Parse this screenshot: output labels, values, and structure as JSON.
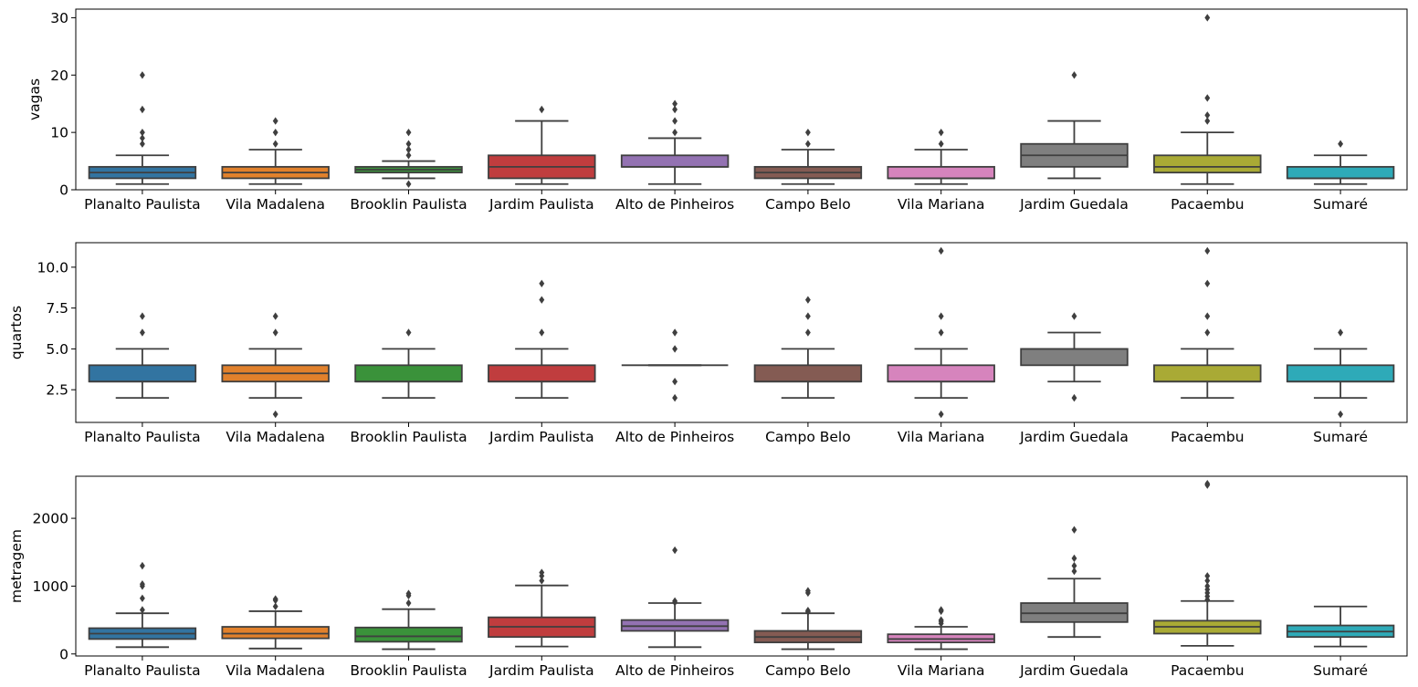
{
  "chart_data": [
    {
      "type": "boxplot",
      "ylabel": "vagas",
      "ylim": [
        0,
        31.5
      ],
      "yticks": [
        0,
        10,
        20,
        30
      ],
      "categories": [
        "Planalto Paulista",
        "Vila Madalena",
        "Brooklin Paulista",
        "Jardim Paulista",
        "Alto de Pinheiros",
        "Campo Belo",
        "Vila Mariana",
        "Jardim Guedala",
        "Pacaembu",
        "Sumaré"
      ],
      "boxes": [
        {
          "whislo": 1,
          "q1": 2,
          "med": 3,
          "q3": 4,
          "whishi": 6,
          "fliers": [
            8,
            9,
            10,
            14,
            20
          ]
        },
        {
          "whislo": 1,
          "q1": 2,
          "med": 3,
          "q3": 4,
          "whishi": 7,
          "fliers": [
            8,
            10,
            12
          ]
        },
        {
          "whislo": 2,
          "q1": 3,
          "med": 3.5,
          "q3": 4,
          "whishi": 5,
          "fliers": [
            1,
            6,
            7,
            8,
            10
          ]
        },
        {
          "whislo": 1,
          "q1": 2,
          "med": 4,
          "q3": 6,
          "whishi": 12,
          "fliers": [
            14
          ]
        },
        {
          "whislo": 1,
          "q1": 4,
          "med": 4,
          "q3": 6,
          "whishi": 9,
          "fliers": [
            10,
            12,
            14,
            15
          ]
        },
        {
          "whislo": 1,
          "q1": 2,
          "med": 3,
          "q3": 4,
          "whishi": 7,
          "fliers": [
            8,
            10
          ]
        },
        {
          "whislo": 1,
          "q1": 2,
          "med": 2,
          "q3": 4,
          "whishi": 7,
          "fliers": [
            8,
            10
          ]
        },
        {
          "whislo": 2,
          "q1": 4,
          "med": 6,
          "q3": 8,
          "whishi": 12,
          "fliers": [
            20
          ]
        },
        {
          "whislo": 1,
          "q1": 3,
          "med": 4,
          "q3": 6,
          "whishi": 10,
          "fliers": [
            12,
            13,
            16,
            30
          ]
        },
        {
          "whislo": 1,
          "q1": 2,
          "med": 2,
          "q3": 4,
          "whishi": 6,
          "fliers": [
            8
          ]
        }
      ]
    },
    {
      "type": "boxplot",
      "ylabel": "quartos",
      "ylim": [
        0.5,
        11.5
      ],
      "yticks": [
        2.5,
        5.0,
        7.5,
        10.0
      ],
      "categories": [
        "Planalto Paulista",
        "Vila Madalena",
        "Brooklin Paulista",
        "Jardim Paulista",
        "Alto de Pinheiros",
        "Campo Belo",
        "Vila Mariana",
        "Jardim Guedala",
        "Pacaembu",
        "Sumaré"
      ],
      "boxes": [
        {
          "whislo": 2,
          "q1": 3,
          "med": 3,
          "q3": 4,
          "whishi": 5,
          "fliers": [
            6,
            7
          ]
        },
        {
          "whislo": 2,
          "q1": 3,
          "med": 3.5,
          "q3": 4,
          "whishi": 5,
          "fliers": [
            1,
            6,
            7
          ]
        },
        {
          "whislo": 2,
          "q1": 3,
          "med": 3,
          "q3": 4,
          "whishi": 5,
          "fliers": [
            6
          ]
        },
        {
          "whislo": 2,
          "q1": 3,
          "med": 3,
          "q3": 4,
          "whishi": 5,
          "fliers": [
            6,
            8,
            9
          ]
        },
        {
          "whislo": 4,
          "q1": 4,
          "med": 4,
          "q3": 4,
          "whishi": 4,
          "fliers": [
            2,
            3,
            5,
            6
          ]
        },
        {
          "whislo": 2,
          "q1": 3,
          "med": 3,
          "q3": 4,
          "whishi": 5,
          "fliers": [
            6,
            7,
            8
          ]
        },
        {
          "whislo": 2,
          "q1": 3,
          "med": 3,
          "q3": 4,
          "whishi": 5,
          "fliers": [
            1,
            6,
            7,
            11
          ]
        },
        {
          "whislo": 3,
          "q1": 4,
          "med": 5,
          "q3": 5,
          "whishi": 6,
          "fliers": [
            2,
            7
          ]
        },
        {
          "whislo": 2,
          "q1": 3,
          "med": 3,
          "q3": 4,
          "whishi": 5,
          "fliers": [
            6,
            7,
            9,
            11
          ]
        },
        {
          "whislo": 2,
          "q1": 3,
          "med": 3,
          "q3": 4,
          "whishi": 5,
          "fliers": [
            1,
            6
          ]
        }
      ]
    },
    {
      "type": "boxplot",
      "ylabel": "metragem",
      "ylim": [
        -30,
        2620
      ],
      "yticks": [
        0,
        1000,
        2000
      ],
      "categories": [
        "Planalto Paulista",
        "Vila Madalena",
        "Brooklin Paulista",
        "Jardim Paulista",
        "Alto de Pinheiros",
        "Campo Belo",
        "Vila Mariana",
        "Jardim Guedala",
        "Pacaembu",
        "Sumaré"
      ],
      "boxes": [
        {
          "whislo": 100,
          "q1": 220,
          "med": 300,
          "q3": 380,
          "whishi": 600,
          "fliers": [
            650,
            820,
            1000,
            1030,
            1300
          ]
        },
        {
          "whislo": 80,
          "q1": 230,
          "med": 300,
          "q3": 400,
          "whishi": 630,
          "fliers": [
            700,
            790,
            810
          ]
        },
        {
          "whislo": 70,
          "q1": 180,
          "med": 260,
          "q3": 390,
          "whishi": 660,
          "fliers": [
            750,
            860,
            890
          ]
        },
        {
          "whislo": 110,
          "q1": 250,
          "med": 400,
          "q3": 540,
          "whishi": 1010,
          "fliers": [
            1080,
            1150,
            1200
          ]
        },
        {
          "whislo": 100,
          "q1": 340,
          "med": 410,
          "q3": 500,
          "whishi": 750,
          "fliers": [
            760,
            780,
            1530
          ]
        },
        {
          "whislo": 70,
          "q1": 170,
          "med": 250,
          "q3": 340,
          "whishi": 600,
          "fliers": [
            620,
            640,
            900,
            930
          ]
        },
        {
          "whislo": 70,
          "q1": 170,
          "med": 220,
          "q3": 290,
          "whishi": 400,
          "fliers": [
            450,
            480,
            500,
            630,
            650
          ]
        },
        {
          "whislo": 250,
          "q1": 470,
          "med": 600,
          "q3": 750,
          "whishi": 1110,
          "fliers": [
            1220,
            1300,
            1410,
            1830
          ]
        },
        {
          "whislo": 120,
          "q1": 300,
          "med": 400,
          "q3": 490,
          "whishi": 780,
          "fliers": [
            800,
            850,
            900,
            950,
            1000,
            1080,
            1150,
            2490,
            2510
          ]
        },
        {
          "whislo": 110,
          "q1": 250,
          "med": 330,
          "q3": 420,
          "whishi": 700,
          "fliers": []
        }
      ]
    }
  ],
  "colors": [
    "#3274a1",
    "#e1812c",
    "#3a923a",
    "#c03d3e",
    "#9372b2",
    "#845b53",
    "#d684bd",
    "#7f7f7f",
    "#a9aa35",
    "#2eaab8"
  ],
  "line_color": "#3f3f3f"
}
